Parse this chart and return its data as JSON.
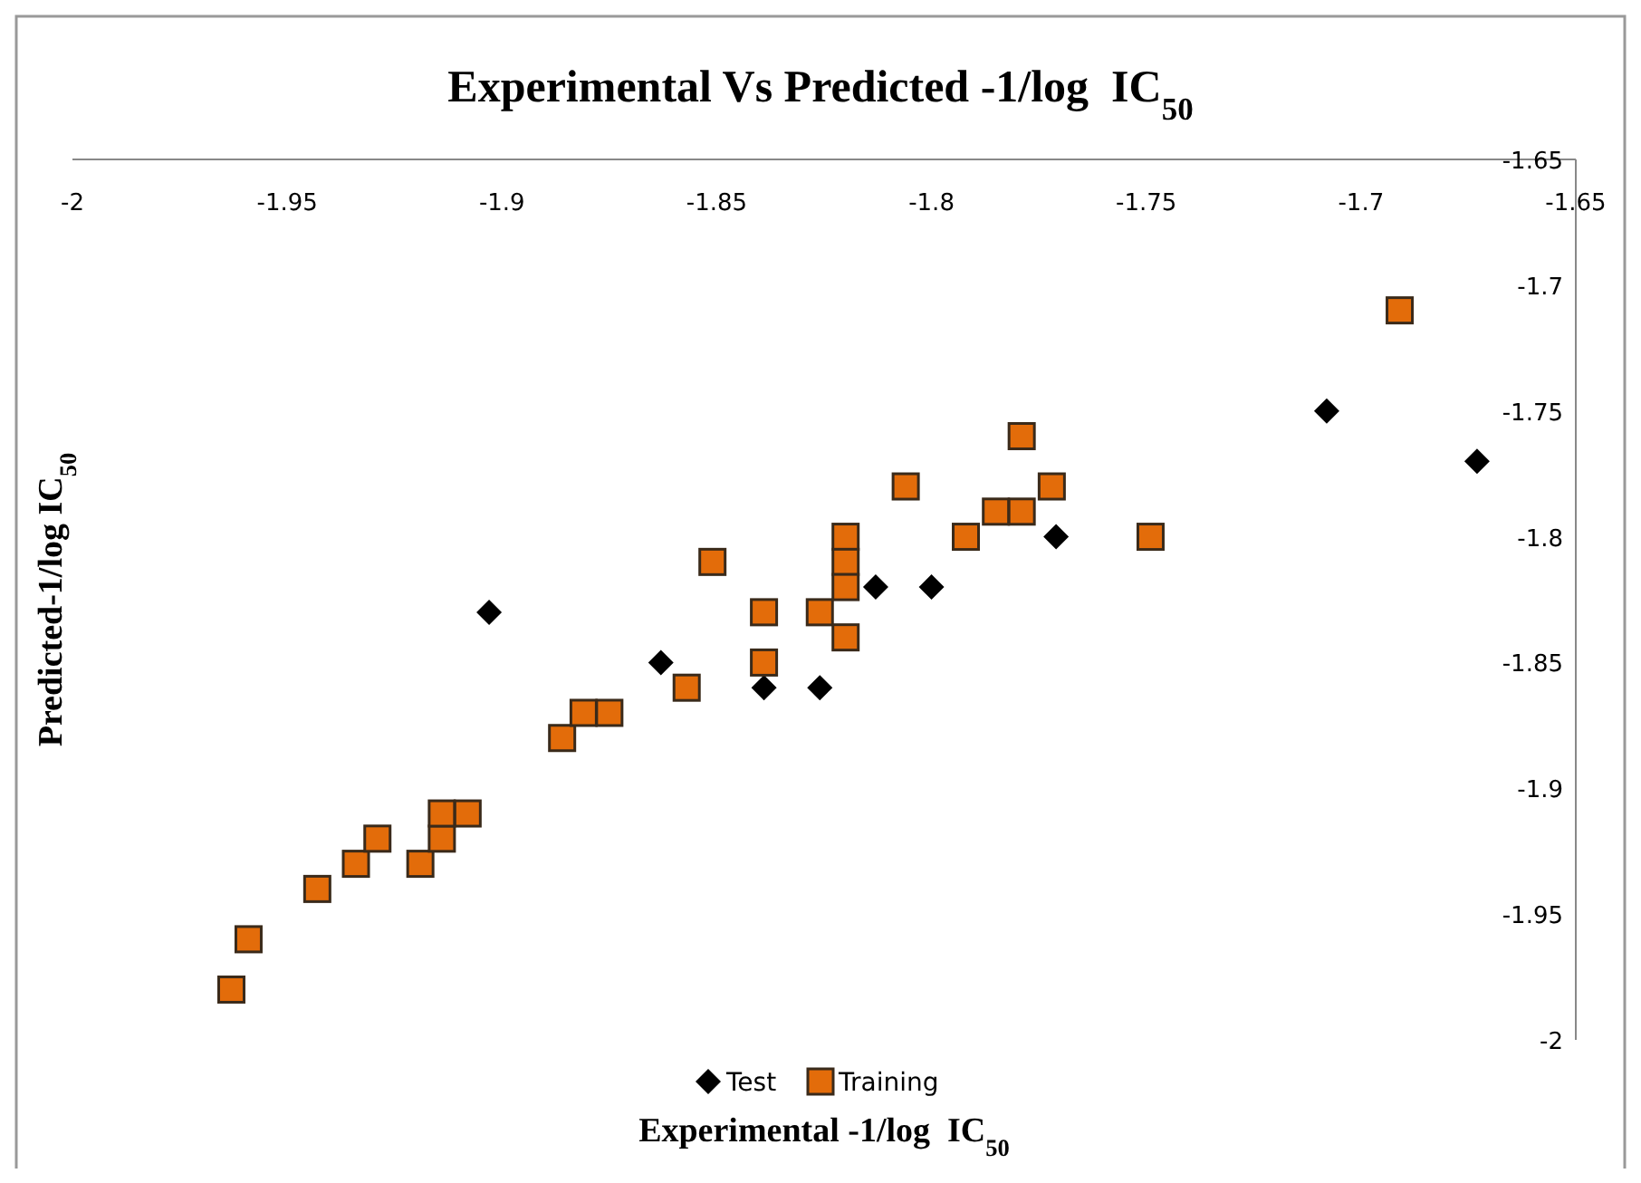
{
  "chart_data": {
    "type": "scatter",
    "title": "Experimental Vs Predicted -1/log  IC$_{50}$",
    "xlabel": "Experimental -1/log  IC$_{50}$",
    "ylabel": "Predicted-1/log IC$_{50}$",
    "xlim": [
      -2,
      -1.65
    ],
    "xticks": [
      -2,
      -1.95,
      -1.9,
      -1.85,
      -1.8,
      -1.75,
      -1.7,
      -1.65
    ],
    "ylim": [
      -2,
      -1.65
    ],
    "yticks": [
      -1.65,
      -1.7,
      -1.75,
      -1.8,
      -1.85,
      -1.9,
      -1.95,
      -2
    ],
    "grid": false,
    "legend": "bottom",
    "series": [
      {
        "name": "Test",
        "color": "#000000",
        "marker": "diamond",
        "x": [
          -1.903,
          -1.863,
          -1.839,
          -1.826,
          -1.813,
          -1.8,
          -1.771,
          -1.708,
          -1.673
        ],
        "values": [
          -1.83,
          -1.85,
          -1.86,
          -1.86,
          -1.82,
          -1.82,
          -1.8,
          -1.75,
          -1.77
        ]
      },
      {
        "name": "Training",
        "color": "#e36c0a",
        "marker": "square",
        "x": [
          -1.963,
          -1.959,
          -1.943,
          -1.934,
          -1.929,
          -1.919,
          -1.914,
          -1.914,
          -1.908,
          -1.886,
          -1.881,
          -1.875,
          -1.857,
          -1.851,
          -1.839,
          -1.839,
          -1.826,
          -1.82,
          -1.82,
          -1.82,
          -1.82,
          -1.806,
          -1.792,
          -1.785,
          -1.779,
          -1.779,
          -1.772,
          -1.749,
          -1.691
        ],
        "values": [
          -1.98,
          -1.96,
          -1.94,
          -1.93,
          -1.92,
          -1.93,
          -1.92,
          -1.91,
          -1.91,
          -1.88,
          -1.87,
          -1.87,
          -1.86,
          -1.81,
          -1.83,
          -1.85,
          -1.83,
          -1.8,
          -1.81,
          -1.82,
          -1.84,
          -1.78,
          -1.8,
          -1.79,
          -1.76,
          -1.79,
          -1.78,
          -1.8,
          -1.71
        ]
      }
    ]
  }
}
